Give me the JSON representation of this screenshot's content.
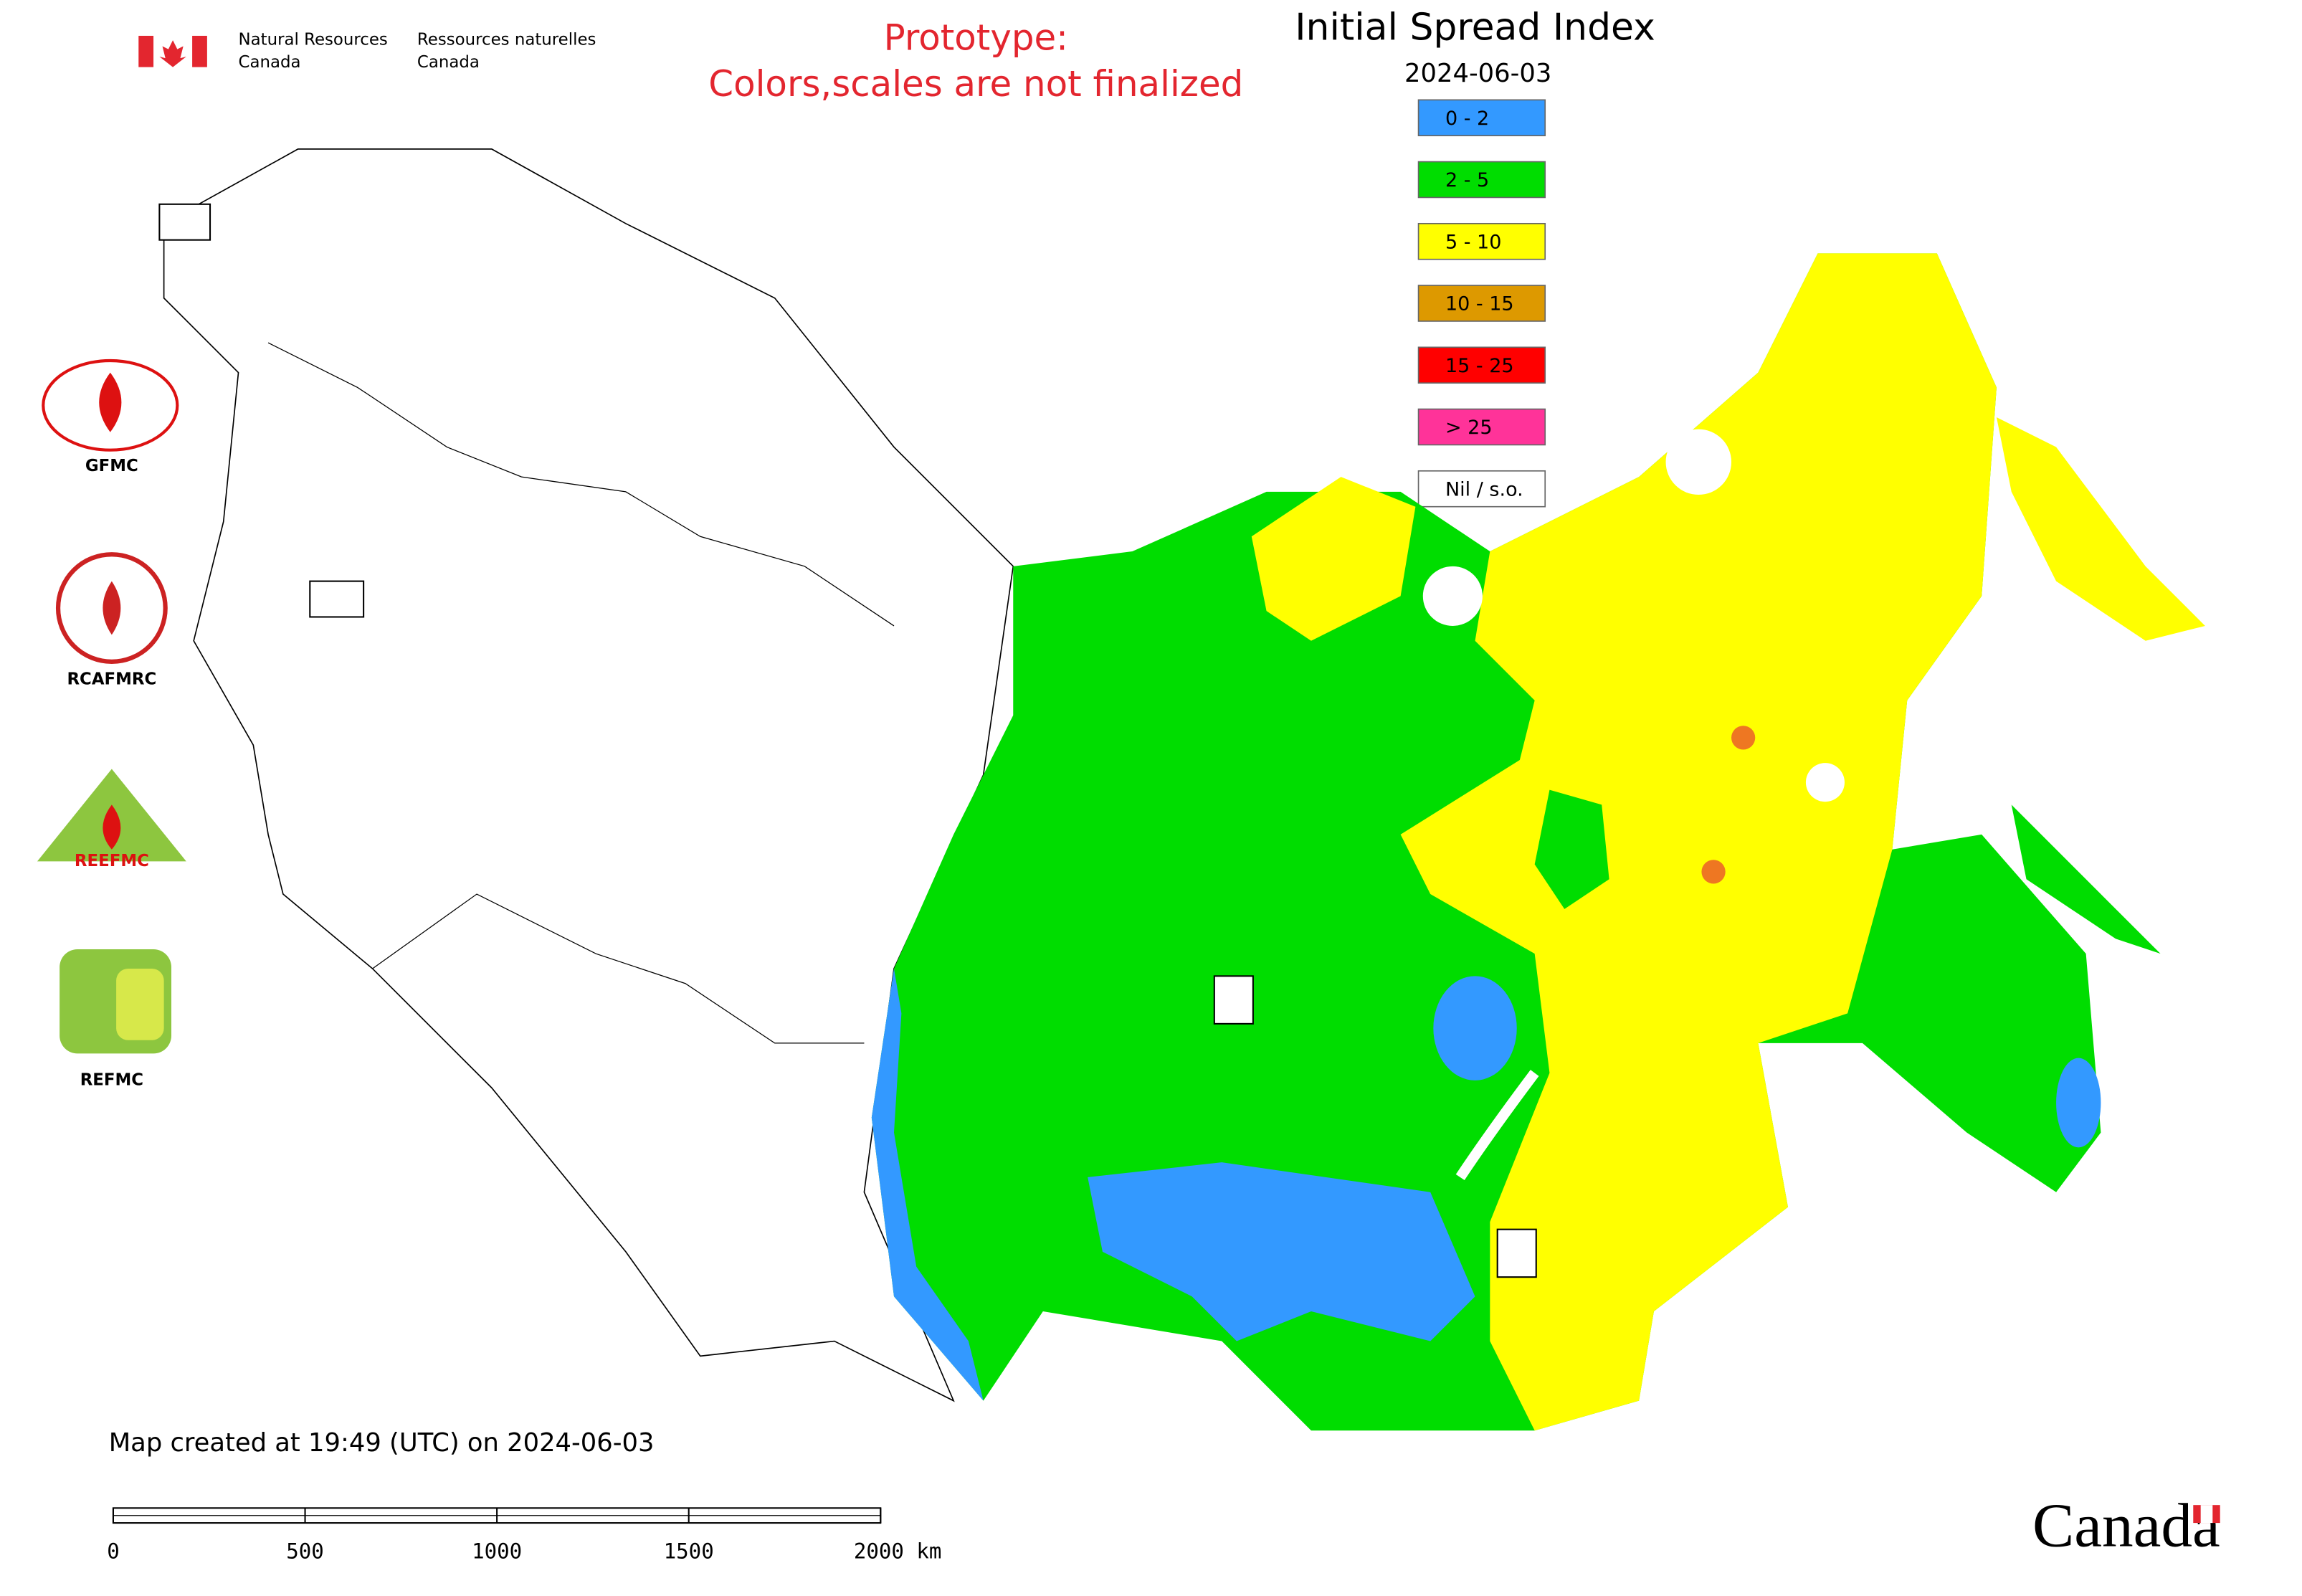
{
  "header": {
    "org_en": [
      "Natural Resources",
      "Canada"
    ],
    "org_fr": [
      "Ressources naturelles",
      "Canada"
    ]
  },
  "notice": [
    "Prototype:",
    "Colors,scales are not finalized"
  ],
  "map": {
    "title": "Initial Spread Index",
    "date": "2024-06-03",
    "legend": [
      {
        "label": "0 - 2",
        "color": "#3399ff"
      },
      {
        "label": "2 - 5",
        "color": "#00dd00"
      },
      {
        "label": "5 - 10",
        "color": "#ffff00"
      },
      {
        "label": "10 - 15",
        "color": "#dd9900"
      },
      {
        "label": "15 - 25",
        "color": "#ff0000"
      },
      {
        "label": "> 25",
        "color": "#ff3399"
      },
      {
        "label": "Nil / s.o.",
        "color": "#ffffff"
      }
    ]
  },
  "logos": [
    "GFMC",
    "RCAFMRC",
    "REEFMC",
    "REFMC"
  ],
  "footer": {
    "created": "Map created at 19:49 (UTC) on 2024-06-03",
    "scale_labels": [
      "0",
      "500",
      "1000",
      "1500",
      "2000 km"
    ],
    "wordmark": "Canada"
  }
}
